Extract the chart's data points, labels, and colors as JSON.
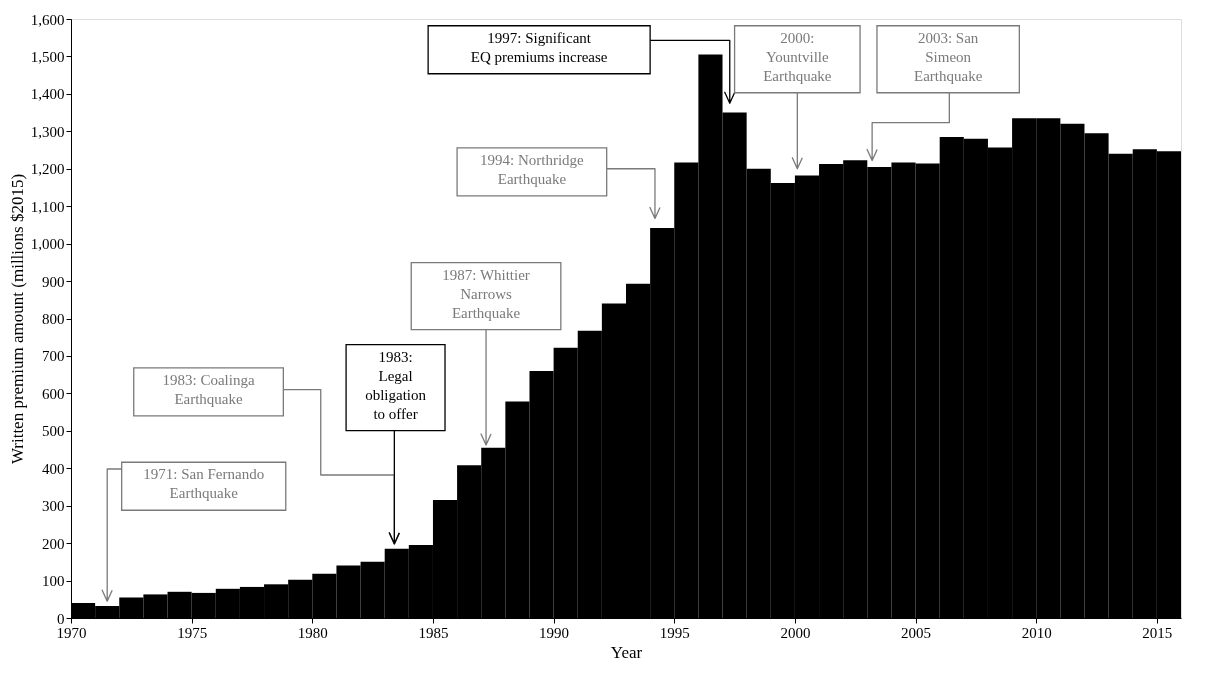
{
  "chart_data": {
    "type": "bar",
    "xlabel": "Year",
    "ylabel": "Written premium amount (millions $2015)",
    "color": "#000000",
    "grid": false,
    "x": [
      1970.5,
      1971.5,
      1972.5,
      1973.5,
      1974.5,
      1975.5,
      1976.5,
      1977.5,
      1978.5,
      1979.5,
      1980.5,
      1981.5,
      1982.5,
      1983.5,
      1984.5,
      1985.5,
      1986.5,
      1987.5,
      1988.5,
      1989.5,
      1990.5,
      1991.5,
      1992.5,
      1993.5,
      1994.5,
      1995.5,
      1996.5,
      1997.5,
      1998.5,
      1999.5,
      2000.5,
      2001.5,
      2002.5,
      2003.5,
      2004.5,
      2005.5,
      2006.5,
      2007.5,
      2008.5,
      2009.5,
      2010.5,
      2011.5,
      2012.5,
      2013.5,
      2014.5,
      2015.5
    ],
    "values": [
      40,
      32,
      55,
      63,
      70,
      67,
      78,
      83,
      90,
      102,
      118,
      140,
      150,
      185,
      195,
      315,
      408,
      455,
      578,
      660,
      722,
      767,
      840,
      893,
      1042,
      1217,
      1505,
      1350,
      1200,
      1162,
      1182,
      1213,
      1223,
      1205,
      1217,
      1214,
      1285,
      1280,
      1257,
      1335,
      1335,
      1320,
      1295,
      1240,
      1252,
      1247
    ],
    "xlim": [
      1970,
      2016
    ],
    "ylim": [
      0,
      1600
    ],
    "xticks": [
      1970,
      1975,
      1980,
      1985,
      1990,
      1995,
      2000,
      2005,
      2010,
      2015
    ],
    "yticks": [
      0,
      100,
      200,
      300,
      400,
      500,
      600,
      700,
      800,
      900,
      {
        "value": 1000,
        "label": "1,000"
      },
      {
        "value": 1100,
        "label": "1,100"
      },
      {
        "value": 1200,
        "label": "1,200"
      },
      {
        "value": 1300,
        "label": "1,300"
      },
      {
        "value": 1400,
        "label": "1,400"
      },
      {
        "value": 1500,
        "label": "1,500"
      },
      {
        "value": 1600,
        "label": "1,600"
      }
    ],
    "annotations": [
      "1971: San Fernando\nEarthquake",
      "1983: Coalinga\nEarthquake",
      "1983:\nLegal\nobligation\nto offer",
      "1987: Whittier\nNarrows\nEarthquake",
      "1994: Northridge\nEarthquake",
      "1997: Significant\nEQ premiums  increase",
      "2000:\nYountville\nEarthquake",
      "2003: San\nSimeon\nEarthquake"
    ]
  }
}
